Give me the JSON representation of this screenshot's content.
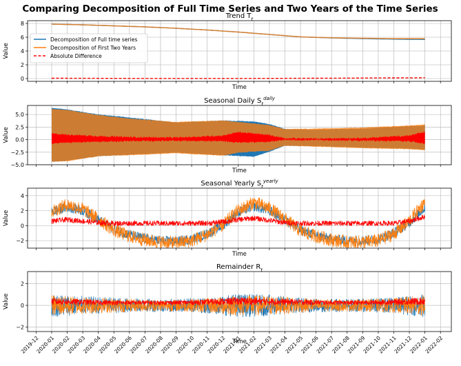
{
  "figure_title": "Comparing Decomposition of Full Time Series and Two Years of the Time Series",
  "colors": {
    "full": "#1f77b4",
    "two": "#ff7f0e",
    "diff": "#ff0000"
  },
  "chart_data": [
    {
      "type": "line",
      "title": "Trend T",
      "title_sub": "t",
      "xlabel": "Time",
      "ylabel": "Value",
      "ylim": [
        -0.4,
        8.4
      ],
      "yticks": [
        0,
        2,
        4,
        6,
        8
      ],
      "legend": {
        "position": "top-left",
        "items": [
          "Decomposition of Full time series",
          "Decomposition of First Two Years",
          "Absolute Difference"
        ]
      },
      "series": [
        {
          "name": "Decomposition of Full time series",
          "x": [
            0,
            2,
            4,
            6,
            8,
            10,
            12,
            14,
            16,
            18,
            20,
            22,
            24
          ],
          "values": [
            7.9,
            7.8,
            7.65,
            7.5,
            7.3,
            7.05,
            6.75,
            6.4,
            6.05,
            5.9,
            5.8,
            5.72,
            5.68
          ]
        },
        {
          "name": "Decomposition of First Two Years",
          "x": [
            0,
            2,
            4,
            6,
            8,
            10,
            12,
            14,
            16,
            18,
            20,
            22,
            24
          ],
          "values": [
            7.9,
            7.8,
            7.65,
            7.5,
            7.3,
            7.05,
            6.75,
            6.4,
            6.05,
            5.92,
            5.85,
            5.8,
            5.8
          ]
        },
        {
          "name": "Absolute Difference",
          "x": [
            0,
            2,
            4,
            6,
            8,
            10,
            12,
            14,
            16,
            18,
            20,
            22,
            24
          ],
          "values": [
            0.05,
            0.04,
            0.03,
            0.02,
            0.02,
            0.02,
            0.02,
            0.03,
            0.04,
            0.06,
            0.08,
            0.1,
            0.12
          ]
        }
      ]
    },
    {
      "type": "area",
      "title": "Seasonal Daily S",
      "title_sub": "t",
      "title_sup": "daily",
      "xlabel": "Time",
      "ylabel": "Value",
      "ylim": [
        -5,
        6.8
      ],
      "yticks": [
        5.0,
        2.5,
        0.0,
        -2.5,
        -5.0
      ],
      "ytick_labels": [
        "5.0",
        "2.5",
        "0.0",
        "−2.5",
        "−5.0"
      ],
      "series": [
        {
          "name": "Decomposition of Full time series",
          "x": [
            0,
            1,
            3,
            5,
            8,
            11,
            13,
            14,
            15,
            17,
            20,
            23,
            24
          ],
          "upper": [
            6.3,
            6.0,
            5.0,
            4.4,
            3.4,
            3.8,
            3.6,
            3.1,
            2.1,
            2.0,
            2.2,
            2.7,
            2.8
          ],
          "lower": [
            -4.4,
            -4.2,
            -3.3,
            -3.0,
            -2.6,
            -3.1,
            -3.4,
            -2.4,
            -1.2,
            -1.3,
            -1.6,
            -1.8,
            -2.0
          ]
        },
        {
          "name": "Decomposition of First Two Years",
          "x": [
            0,
            1,
            3,
            5,
            8,
            11,
            12,
            14,
            15,
            17,
            20,
            23,
            24
          ],
          "upper": [
            6.1,
            5.9,
            4.9,
            4.2,
            3.5,
            3.8,
            3.5,
            2.9,
            2.1,
            2.2,
            2.4,
            2.8,
            3.0
          ],
          "lower": [
            -4.4,
            -4.3,
            -3.3,
            -3.1,
            -2.7,
            -3.2,
            -2.6,
            -2.2,
            -1.2,
            -1.4,
            -1.7,
            -1.9,
            -2.1
          ]
        },
        {
          "name": "Absolute Difference",
          "x": [
            0,
            1,
            3,
            5,
            8,
            11,
            12,
            14,
            15,
            17,
            20,
            23,
            24
          ],
          "upper": [
            1.2,
            1.0,
            0.7,
            0.5,
            0.4,
            0.8,
            1.5,
            0.9,
            0.3,
            0.2,
            0.3,
            0.8,
            1.5
          ],
          "lower": [
            -0.8,
            -0.6,
            -0.4,
            -0.3,
            -0.2,
            -0.3,
            -0.6,
            -0.4,
            -0.1,
            -0.1,
            -0.2,
            -0.3,
            -0.8
          ]
        }
      ]
    },
    {
      "type": "line",
      "title": "Seasonal Yearly S",
      "title_sub": "t",
      "title_sup": "yearly",
      "xlabel": "Time",
      "ylabel": "Value",
      "ylim": [
        -3,
        5
      ],
      "yticks": [
        4,
        2,
        0,
        -2
      ],
      "ytick_labels": [
        "4",
        "2",
        "0",
        "−2"
      ],
      "series": [
        {
          "name": "Decomposition of Full time series",
          "x": [
            0,
            1,
            2,
            3,
            4,
            5,
            6,
            7,
            8,
            9,
            10,
            11,
            12,
            13,
            14,
            15,
            16,
            17,
            18,
            19,
            20,
            21,
            22,
            23,
            24
          ],
          "values": [
            1.8,
            2.5,
            2.0,
            0.8,
            -0.5,
            -1.2,
            -1.7,
            -2.0,
            -2.1,
            -1.8,
            -1.1,
            0.0,
            1.8,
            2.6,
            2.0,
            0.8,
            -0.6,
            -1.3,
            -1.8,
            -2.0,
            -2.0,
            -1.8,
            -1.0,
            0.4,
            2.4
          ],
          "noise": 0.55
        },
        {
          "name": "Decomposition of First Two Years",
          "x": [
            0,
            1,
            2,
            3,
            4,
            5,
            6,
            7,
            8,
            9,
            10,
            11,
            12,
            13,
            14,
            15,
            16,
            17,
            18,
            19,
            20,
            21,
            22,
            23,
            24
          ],
          "values": [
            1.9,
            2.8,
            2.2,
            0.9,
            -0.6,
            -1.4,
            -1.9,
            -2.2,
            -2.3,
            -2.0,
            -1.2,
            0.1,
            2.0,
            3.1,
            2.3,
            0.9,
            -0.7,
            -1.4,
            -1.9,
            -2.2,
            -2.2,
            -2.0,
            -1.1,
            0.6,
            3.2
          ],
          "noise": 0.75
        },
        {
          "name": "Absolute Difference",
          "x": [
            0,
            1,
            2,
            3,
            4,
            5,
            6,
            7,
            8,
            9,
            10,
            11,
            12,
            13,
            14,
            15,
            16,
            17,
            18,
            19,
            20,
            21,
            22,
            23,
            24
          ],
          "values": [
            0.6,
            0.8,
            0.6,
            0.4,
            0.3,
            0.3,
            0.3,
            0.3,
            0.3,
            0.3,
            0.3,
            0.5,
            0.8,
            1.0,
            0.7,
            0.4,
            0.3,
            0.3,
            0.3,
            0.3,
            0.3,
            0.3,
            0.3,
            0.6,
            1.2
          ],
          "noise": 0.35
        }
      ]
    },
    {
      "type": "line",
      "title": "Remainder R",
      "title_sub": "t",
      "xlabel": "Time",
      "ylabel": "Value",
      "ylim": [
        -2.4,
        3.1
      ],
      "yticks": [
        2,
        0,
        -2
      ],
      "ytick_labels": [
        "2",
        "0",
        "−2"
      ],
      "x_ticks": [
        "2019-12",
        "2020-01",
        "2020-02",
        "2020-03",
        "2020-04",
        "2020-05",
        "2020-06",
        "2020-07",
        "2020-08",
        "2020-09",
        "2020-10",
        "2020-11",
        "2020-12",
        "2021-01",
        "2021-02",
        "2021-03",
        "2021-04",
        "2021-05",
        "2021-06",
        "2021-07",
        "2021-08",
        "2021-09",
        "2021-10",
        "2021-11",
        "2021-12",
        "2022-01",
        "2022-02"
      ],
      "series": [
        {
          "name": "Decomposition of Full time series",
          "x": [
            0,
            2,
            4,
            6,
            8,
            10,
            12,
            14,
            16,
            18,
            20,
            22,
            24
          ],
          "values": [
            0,
            0,
            0,
            0,
            0,
            0,
            0,
            0,
            0,
            0,
            0,
            0,
            0
          ],
          "noise": [
            0.9,
            0.7,
            0.6,
            0.5,
            0.5,
            0.6,
            0.9,
            0.8,
            0.6,
            0.5,
            0.5,
            0.6,
            0.9
          ]
        },
        {
          "name": "Decomposition of First Two Years",
          "x": [
            0,
            2,
            4,
            6,
            8,
            10,
            12,
            14,
            16,
            18,
            20,
            22,
            24
          ],
          "values": [
            0,
            0,
            0,
            0,
            0,
            0,
            0,
            0,
            0,
            0,
            0,
            0,
            0
          ],
          "noise": [
            0.8,
            0.65,
            0.55,
            0.45,
            0.45,
            0.55,
            0.8,
            0.75,
            0.55,
            0.45,
            0.45,
            0.55,
            0.8
          ]
        },
        {
          "name": "Absolute Difference",
          "x": [
            0,
            2,
            4,
            6,
            8,
            10,
            12,
            14,
            16,
            18,
            20,
            22,
            24
          ],
          "values": [
            0.35,
            0.3,
            0.25,
            0.25,
            0.25,
            0.3,
            0.4,
            0.35,
            0.3,
            0.25,
            0.25,
            0.3,
            0.4
          ],
          "noise": [
            0.3,
            0.25,
            0.2,
            0.2,
            0.2,
            0.25,
            0.35,
            0.3,
            0.25,
            0.2,
            0.2,
            0.25,
            0.35
          ]
        }
      ]
    }
  ]
}
